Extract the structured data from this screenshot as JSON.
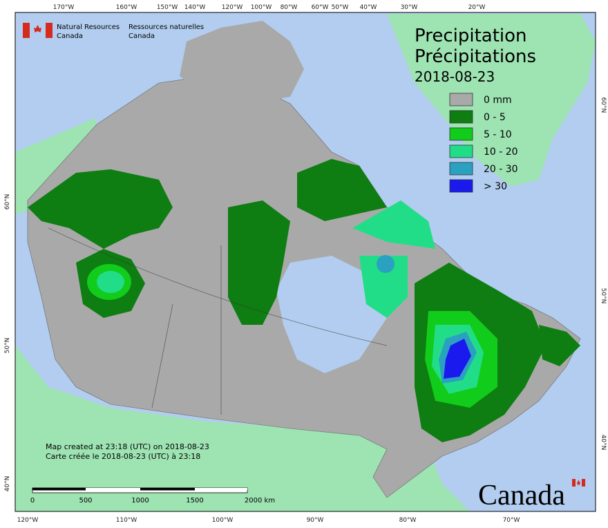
{
  "header": {
    "org_en_1": "Natural Resources",
    "org_en_2": "Canada",
    "org_fr_1": "Ressources naturelles",
    "org_fr_2": "Canada"
  },
  "title": {
    "line1": "Precipitation",
    "line2": "Précipitations",
    "date": "2018-08-23"
  },
  "legend": [
    {
      "label": "0 mm",
      "color": "#a9a9a9"
    },
    {
      "label": "0 - 5",
      "color": "#0e7d12"
    },
    {
      "label": "5 - 10",
      "color": "#11cc1a"
    },
    {
      "label": "10 - 20",
      "color": "#22dd88"
    },
    {
      "label": "20 - 30",
      "color": "#2aa1c0"
    },
    {
      "label": "> 30",
      "color": "#1a1aee"
    }
  ],
  "credits": [
    "Map created at 23:18 (UTC) on 2018-08-23",
    "Carte créée le 2018-08-23 (UTC) à 23:18"
  ],
  "scale_bar": [
    "0",
    "500",
    "1000",
    "1500",
    "2000 km"
  ],
  "graticule": {
    "top": [
      "170°W",
      "160°W",
      "150°W",
      "140°W",
      "120°W",
      "100°W",
      "80°W",
      "60°W",
      "50°W",
      "40°W",
      "30°W",
      "20°W"
    ],
    "bottom": [
      "120°W",
      "110°W",
      "100°W",
      "90°W",
      "80°W",
      "70°W"
    ],
    "left": [
      "60°N",
      "50°N",
      "40°N"
    ],
    "right": [
      "60°N",
      "50°N",
      "40°N"
    ]
  },
  "wordmark": "Canada"
}
